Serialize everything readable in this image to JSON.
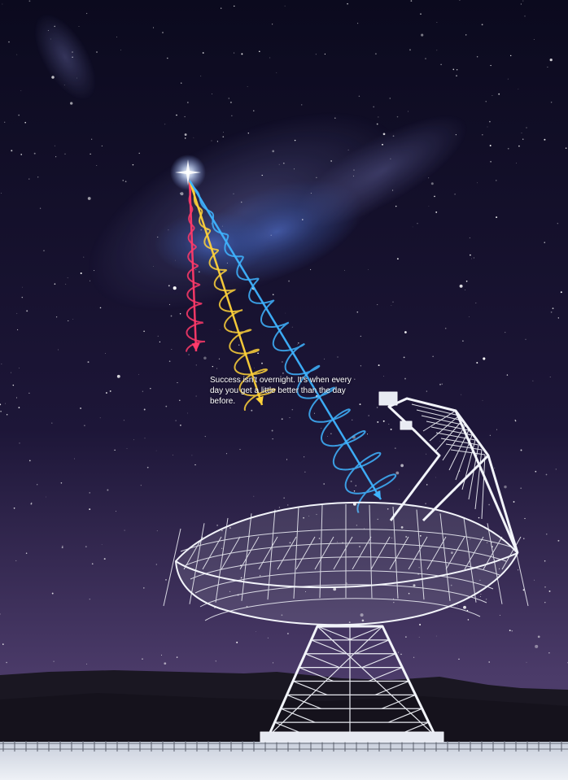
{
  "caption": {
    "quote": "Success isn't overnight. It's when every day you get a little better than the day before."
  },
  "palette": {
    "sky_top": "#0b0a1e",
    "sky_mid": "#1d1638",
    "sky_horizon": "#4a3a68",
    "nebula_blue": "#3e6fd6",
    "beam_red": "#ff3a6a",
    "beam_yellow": "#ffd23a",
    "beam_blue": "#3fb4ff",
    "beam_cyan": "#7ee8ff",
    "structure": "#f2f4fa",
    "ground": "#dfe3ec",
    "hills": "#1a1722"
  }
}
